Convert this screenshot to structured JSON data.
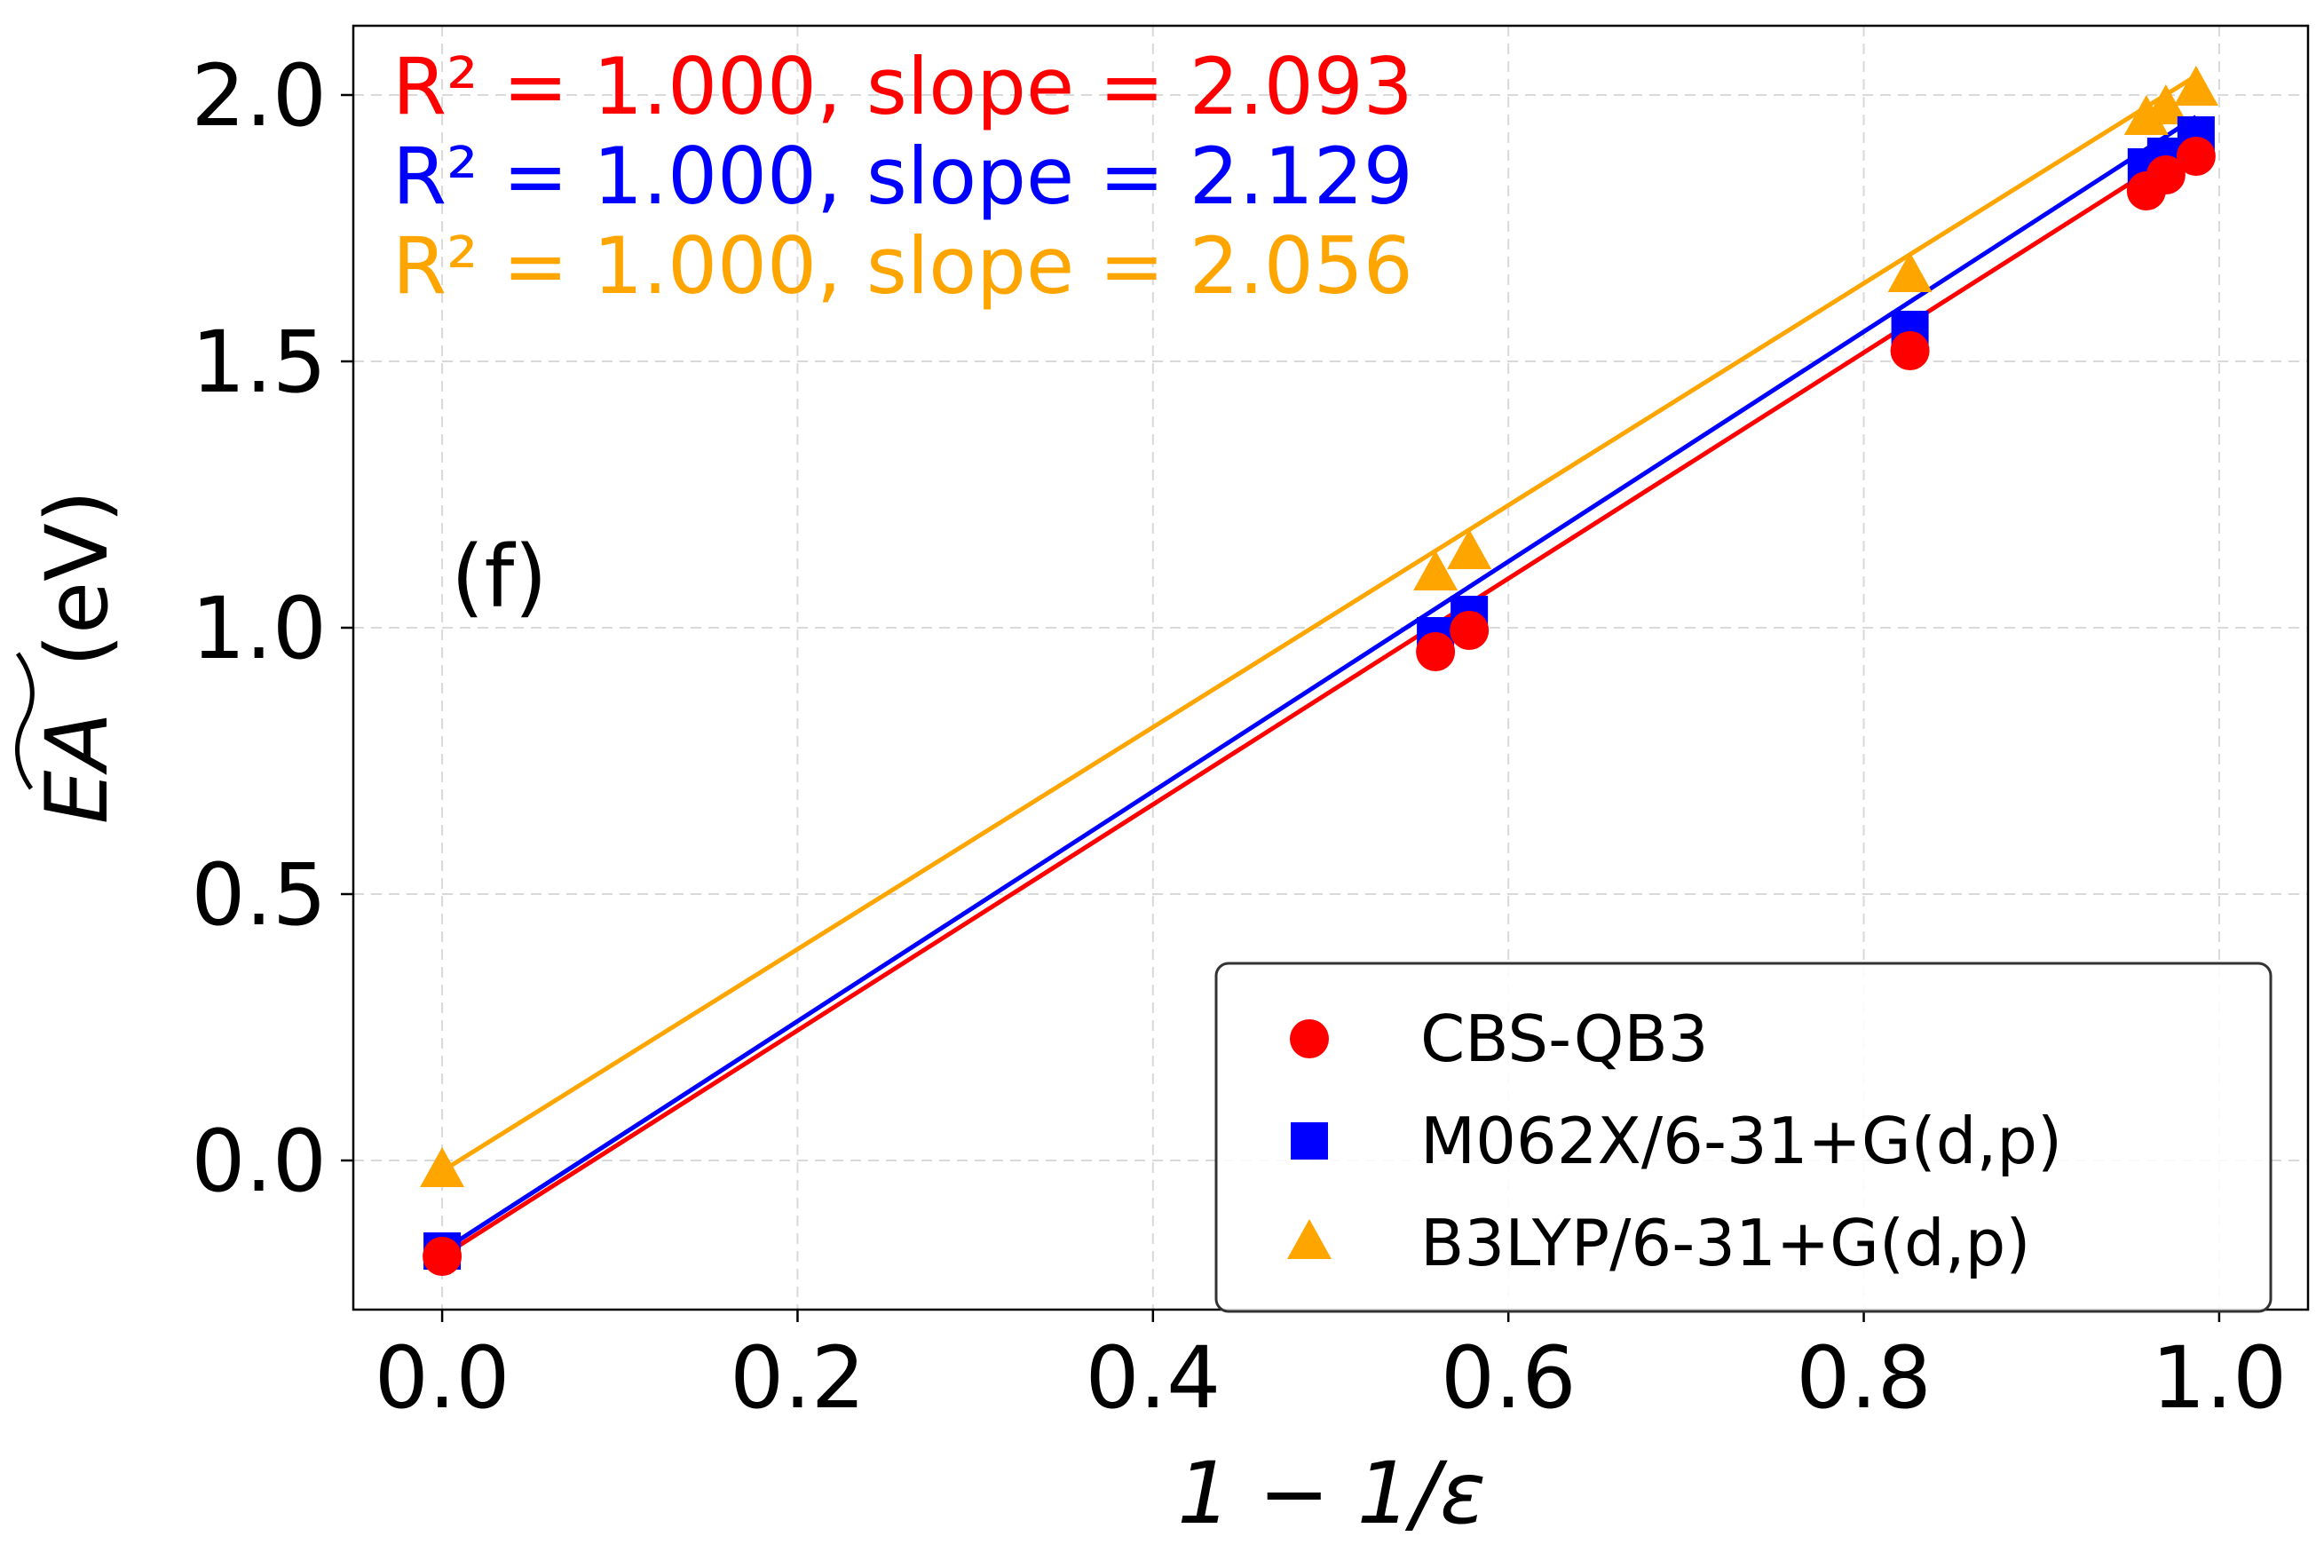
{
  "chart_data": {
    "type": "scatter",
    "title": "",
    "panel_label": "(f)",
    "xlabel": "1 − 1/ε",
    "ylabel_main": "EA",
    "ylabel_units": "(eV)",
    "xlim": [
      -0.05,
      1.05
    ],
    "ylim": [
      -0.28,
      2.13
    ],
    "xticks": [
      0.0,
      0.2,
      0.4,
      0.6,
      0.8,
      1.0
    ],
    "xtick_labels": [
      "0.0",
      "0.2",
      "0.4",
      "0.6",
      "0.8",
      "1.0"
    ],
    "yticks": [
      0.0,
      0.5,
      1.0,
      1.5,
      2.0
    ],
    "ytick_labels": [
      "0.0",
      "0.5",
      "1.0",
      "1.5",
      "2.0"
    ],
    "grid": true,
    "legend_position": "lower-right",
    "x": [
      0.0,
      0.559,
      0.578,
      0.826,
      0.959,
      0.97,
      0.987
    ],
    "series": [
      {
        "name": "CBS-QB3",
        "color": "#ff0000",
        "marker": "circle",
        "values": [
          -0.18,
          0.955,
          0.995,
          1.52,
          1.82,
          1.85,
          1.885
        ],
        "fit": [
          -0.18,
          1.913
        ],
        "annotation": "R² = 1.000, slope = 2.093"
      },
      {
        "name": "M062X/6-31+G(d,p)",
        "color": "#0000ff",
        "marker": "square",
        "values": [
          -0.17,
          0.985,
          1.025,
          1.56,
          1.865,
          1.885,
          1.925
        ],
        "fit": [
          -0.17,
          1.959
        ],
        "annotation": "R² = 1.000, slope = 2.129"
      },
      {
        "name": "B3LYP/6-31+G(d,p)",
        "color": "#ffa500",
        "marker": "triangle",
        "values": [
          -0.02,
          1.1,
          1.14,
          1.66,
          1.955,
          1.975,
          2.01
        ],
        "fit": [
          -0.02,
          2.036
        ],
        "annotation": "R² = 1.000, slope = 2.056"
      }
    ]
  }
}
